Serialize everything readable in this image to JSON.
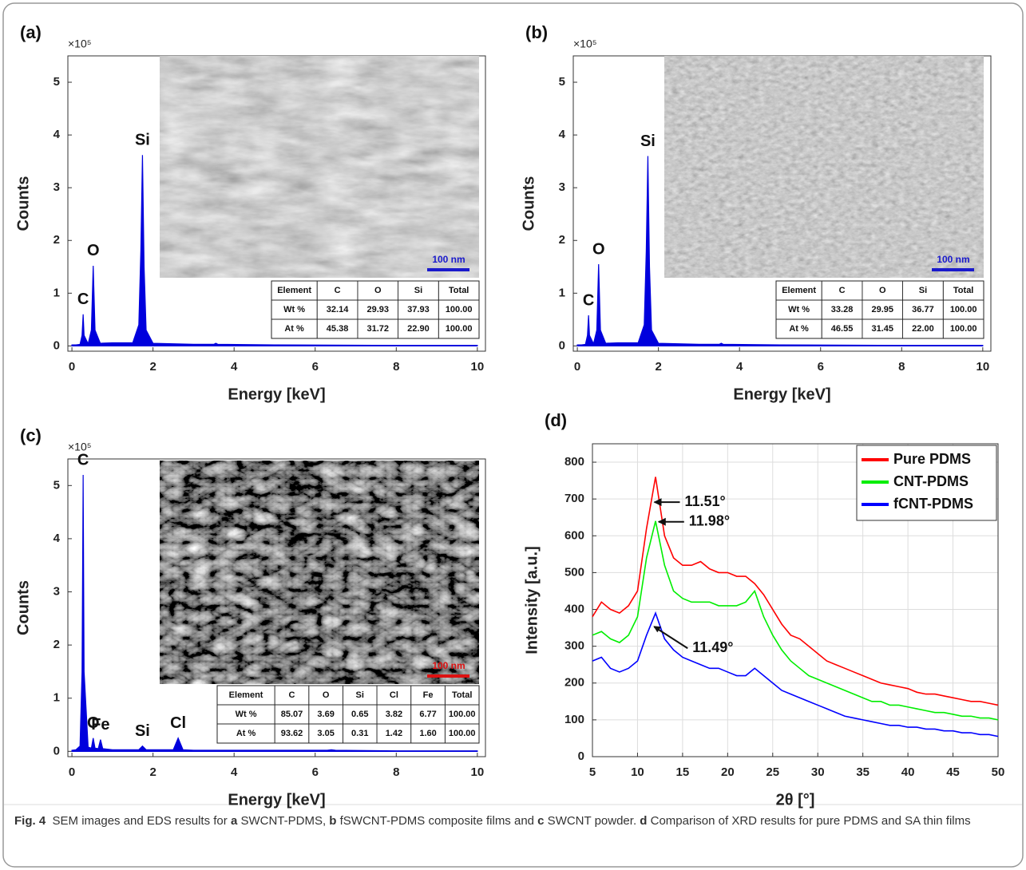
{
  "chart_data": [
    {
      "type": "area",
      "panel": "(a)",
      "y_multiplier": "×10⁵",
      "xlabel": "Energy [keV]",
      "ylabel": "Counts",
      "color": "#0000dd",
      "x": [
        0,
        0.1,
        0.2,
        0.25,
        0.277,
        0.3,
        0.4,
        0.48,
        0.525,
        0.57,
        0.7,
        1.0,
        1.5,
        1.65,
        1.7,
        1.74,
        1.78,
        1.83,
        2.0,
        3.0,
        3.5,
        3.55,
        3.6,
        5,
        8,
        10
      ],
      "values": [
        0.02,
        0.02,
        0.03,
        0.2,
        0.6,
        0.2,
        0.04,
        0.3,
        1.52,
        0.3,
        0.05,
        0.06,
        0.06,
        0.4,
        1.8,
        3.62,
        1.5,
        0.3,
        0.05,
        0.03,
        0.03,
        0.05,
        0.03,
        0.02,
        0.01,
        0.01
      ],
      "xlim": [
        -0.1,
        10.2
      ],
      "ylim": [
        -0.1,
        5.5
      ],
      "xticks": [
        0,
        2,
        4,
        6,
        8,
        10
      ],
      "yticks": [
        0,
        1,
        2,
        3,
        4,
        5
      ],
      "annotations": [
        {
          "text": "C",
          "x": 0.277
        },
        {
          "text": "O",
          "x": 0.525
        },
        {
          "text": "Si",
          "x": 1.74
        }
      ],
      "scale_bar": {
        "label": "100 nm",
        "color": "#1a1acc"
      },
      "table": {
        "header": [
          "Element",
          "C",
          "O",
          "Si",
          "Total"
        ],
        "rows": [
          [
            "Wt %",
            "32.14",
            "29.93",
            "37.93",
            "100.00"
          ],
          [
            "At %",
            "45.38",
            "31.72",
            "22.90",
            "100.00"
          ]
        ]
      }
    },
    {
      "type": "area",
      "panel": "(b)",
      "y_multiplier": "×10⁵",
      "xlabel": "Energy [keV]",
      "ylabel": "Counts",
      "color": "#0000dd",
      "x": [
        0,
        0.1,
        0.2,
        0.25,
        0.277,
        0.3,
        0.4,
        0.48,
        0.525,
        0.57,
        0.7,
        1.0,
        1.5,
        1.65,
        1.7,
        1.74,
        1.78,
        1.83,
        2.0,
        3.0,
        3.5,
        3.55,
        3.6,
        5,
        8,
        10
      ],
      "values": [
        0.02,
        0.02,
        0.03,
        0.2,
        0.58,
        0.2,
        0.04,
        0.3,
        1.55,
        0.3,
        0.05,
        0.06,
        0.06,
        0.4,
        1.8,
        3.6,
        1.5,
        0.3,
        0.05,
        0.03,
        0.03,
        0.05,
        0.03,
        0.02,
        0.01,
        0.01
      ],
      "xlim": [
        -0.1,
        10.2
      ],
      "ylim": [
        -0.1,
        5.5
      ],
      "xticks": [
        0,
        2,
        4,
        6,
        8,
        10
      ],
      "yticks": [
        0,
        1,
        2,
        3,
        4,
        5
      ],
      "annotations": [
        {
          "text": "C",
          "x": 0.277
        },
        {
          "text": "O",
          "x": 0.525
        },
        {
          "text": "Si",
          "x": 1.74
        }
      ],
      "scale_bar": {
        "label": "100 nm",
        "color": "#1a1acc"
      },
      "table": {
        "header": [
          "Element",
          "C",
          "O",
          "Si",
          "Total"
        ],
        "rows": [
          [
            "Wt %",
            "33.28",
            "29.95",
            "36.77",
            "100.00"
          ],
          [
            "At %",
            "46.55",
            "31.45",
            "22.00",
            "100.00"
          ]
        ]
      }
    },
    {
      "type": "area",
      "panel": "(c)",
      "y_multiplier": "×10⁵",
      "xlabel": "Energy [keV]",
      "ylabel": "Counts",
      "color": "#0000dd",
      "x": [
        0,
        0.1,
        0.2,
        0.25,
        0.277,
        0.3,
        0.4,
        0.48,
        0.525,
        0.57,
        0.65,
        0.705,
        0.76,
        1.0,
        1.65,
        1.74,
        1.83,
        2.5,
        2.62,
        2.74,
        3.0,
        6.3,
        6.4,
        6.5,
        8,
        10
      ],
      "values": [
        0.02,
        0.03,
        0.1,
        1.5,
        5.2,
        1.5,
        0.08,
        0.06,
        0.25,
        0.06,
        0.05,
        0.22,
        0.05,
        0.03,
        0.03,
        0.1,
        0.03,
        0.03,
        0.25,
        0.03,
        0.02,
        0.02,
        0.03,
        0.02,
        0.01,
        0.01
      ],
      "xlim": [
        -0.1,
        10.2
      ],
      "ylim": [
        -0.1,
        5.5
      ],
      "xticks": [
        0,
        2,
        4,
        6,
        8,
        10
      ],
      "yticks": [
        0,
        1,
        2,
        3,
        4,
        5
      ],
      "annotations": [
        {
          "text": "C",
          "x": 0.277
        },
        {
          "text": "O",
          "x": 0.525
        },
        {
          "text": "Fe",
          "x": 0.705
        },
        {
          "text": "Si",
          "x": 1.74
        },
        {
          "text": "Cl",
          "x": 2.62
        }
      ],
      "scale_bar": {
        "label": "100 nm",
        "color": "#dd1111"
      },
      "table": {
        "header": [
          "Element",
          "C",
          "O",
          "Si",
          "Cl",
          "Fe",
          "Total"
        ],
        "rows": [
          [
            "Wt %",
            "85.07",
            "3.69",
            "0.65",
            "3.82",
            "6.77",
            "100.00"
          ],
          [
            "At %",
            "93.62",
            "3.05",
            "0.31",
            "1.42",
            "1.60",
            "100.00"
          ]
        ]
      }
    },
    {
      "type": "line",
      "panel": "(d)",
      "xlabel": "2θ [°]",
      "ylabel": "Intensity [a.u.]",
      "grid": true,
      "legend": "upper right",
      "x": [
        5,
        6,
        7,
        8,
        9,
        10,
        11,
        12,
        13,
        14,
        15,
        16,
        17,
        18,
        19,
        20,
        21,
        22,
        23,
        24,
        25,
        26,
        27,
        28,
        29,
        30,
        31,
        32,
        33,
        34,
        35,
        36,
        37,
        38,
        39,
        40,
        41,
        42,
        43,
        44,
        45,
        46,
        47,
        48,
        49,
        50
      ],
      "series": [
        {
          "name": "Pure PDMS",
          "color": "#ff0000",
          "values": [
            380,
            420,
            400,
            390,
            410,
            450,
            620,
            760,
            600,
            540,
            520,
            520,
            530,
            510,
            500,
            500,
            490,
            490,
            470,
            440,
            400,
            360,
            330,
            320,
            300,
            280,
            260,
            250,
            240,
            230,
            220,
            210,
            200,
            195,
            190,
            185,
            175,
            170,
            170,
            165,
            160,
            155,
            150,
            150,
            145,
            140
          ]
        },
        {
          "name": "CNT-PDMS",
          "color": "#00ee00",
          "values": [
            330,
            340,
            320,
            310,
            330,
            380,
            540,
            640,
            520,
            450,
            430,
            420,
            420,
            420,
            410,
            410,
            410,
            420,
            450,
            380,
            330,
            290,
            260,
            240,
            220,
            210,
            200,
            190,
            180,
            170,
            160,
            150,
            150,
            140,
            140,
            135,
            130,
            125,
            120,
            120,
            115,
            110,
            110,
            105,
            105,
            100
          ]
        },
        {
          "name": "fCNT-PDMS",
          "color": "#0000ff",
          "values": [
            260,
            270,
            240,
            230,
            240,
            260,
            330,
            390,
            320,
            290,
            270,
            260,
            250,
            240,
            240,
            230,
            220,
            220,
            240,
            220,
            200,
            180,
            170,
            160,
            150,
            140,
            130,
            120,
            110,
            105,
            100,
            95,
            90,
            85,
            85,
            80,
            80,
            75,
            75,
            70,
            70,
            65,
            65,
            60,
            60,
            55
          ]
        }
      ],
      "xlim": [
        5,
        50
      ],
      "ylim": [
        0,
        850
      ],
      "xticks": [
        5,
        10,
        15,
        20,
        25,
        30,
        35,
        40,
        45,
        50
      ],
      "yticks": [
        0,
        100,
        200,
        300,
        400,
        500,
        600,
        700,
        800
      ],
      "annotations": [
        {
          "text": "11.51°",
          "x": 11.51,
          "series": 0
        },
        {
          "text": "11.98°",
          "x": 11.98,
          "series": 1
        },
        {
          "text": "11.49°",
          "x": 11.49,
          "series": 2
        }
      ]
    }
  ],
  "caption": {
    "label": "Fig. 4",
    "parts": [
      "SEM images and EDS results for ",
      "a",
      " SWCNT-PDMS, ",
      "b",
      " fSWCNT-PDMS composite films and ",
      "c",
      " SWCNT powder. ",
      "d",
      " Comparison of XRD results for pure PDMS and SA thin films"
    ]
  }
}
